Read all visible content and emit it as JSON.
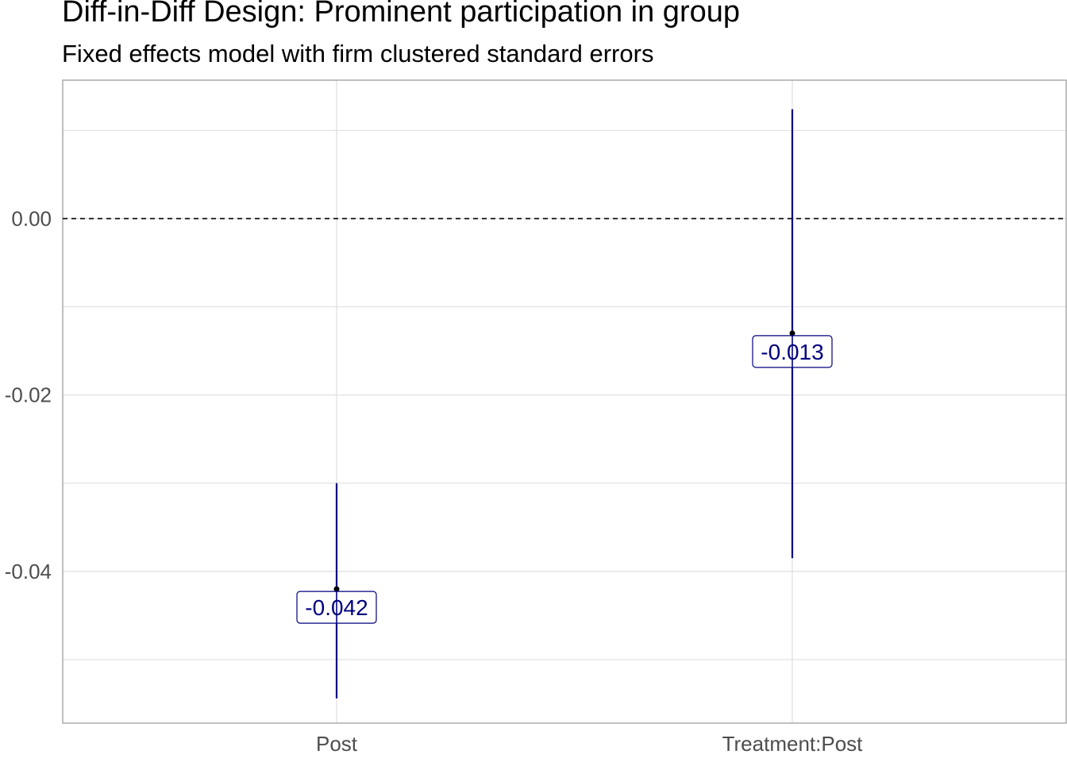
{
  "chart_data": {
    "type": "errorbar",
    "title": "Diff-in-Diff Design: Prominent participation in group",
    "subtitle": "Fixed effects model with firm clustered standard errors",
    "xlabel": "",
    "ylabel": "",
    "categories": [
      "Post",
      "Treatment:Post"
    ],
    "estimates": [
      -0.042,
      -0.013
    ],
    "lower": [
      -0.0544,
      -0.0385
    ],
    "upper": [
      -0.03,
      0.0124
    ],
    "value_labels": [
      "-0.042",
      "-0.013"
    ],
    "y_ticks": [
      0.0,
      -0.02,
      -0.04
    ],
    "y_tick_labels": [
      "0.00",
      "-0.02",
      "-0.04"
    ],
    "ylim": [
      -0.0572,
      0.0157
    ],
    "reference_line": 0,
    "grid": true,
    "colors": {
      "series": "#000080",
      "grid": "#dedede",
      "panel_border": "#a6a6a6",
      "tick_text": "#4d4d4d"
    }
  }
}
